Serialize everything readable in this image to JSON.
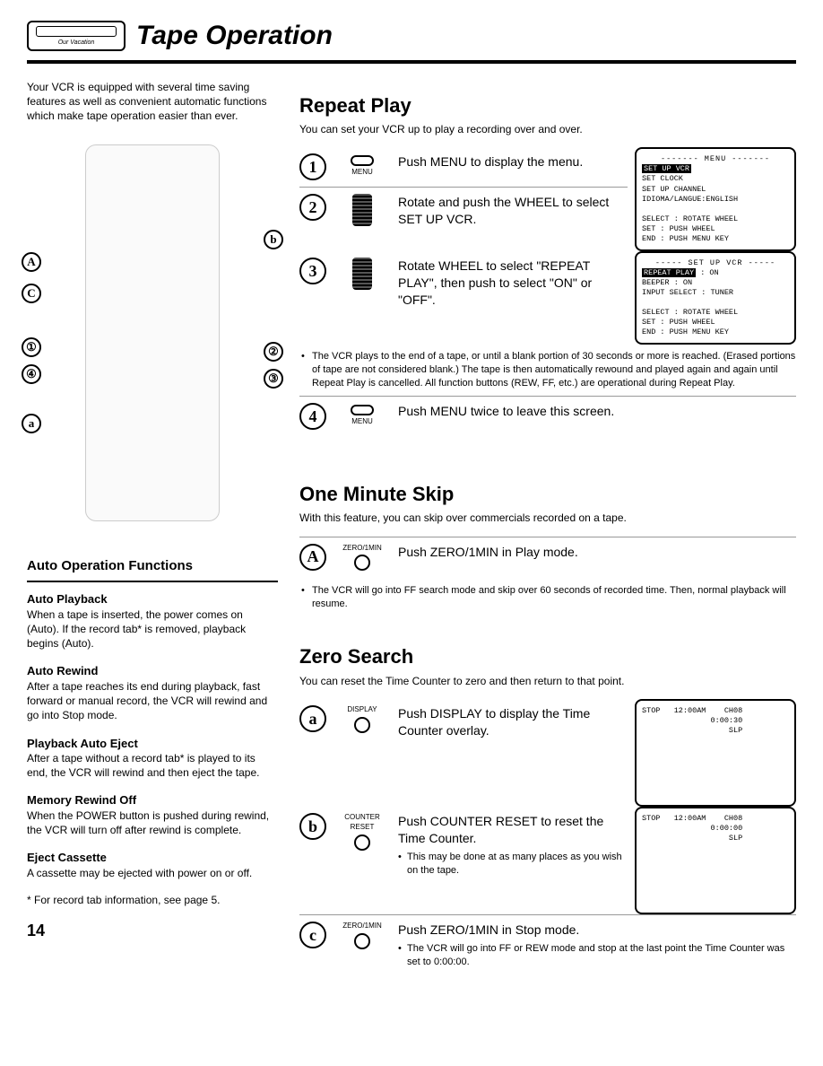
{
  "header": {
    "title": "Tape Operation",
    "tape_label": "Our Vacation"
  },
  "intro": "Your VCR is equipped with several time saving features as well as convenient automatic functions which make tape operation easier than ever.",
  "callouts_left": [
    "A",
    "C",
    "①",
    "④",
    "a"
  ],
  "callouts_right": [
    "b",
    "②",
    "③"
  ],
  "auto": {
    "heading": "Auto Operation Functions",
    "items": [
      {
        "t": "Auto Playback",
        "d": "When a tape is inserted, the power comes on (Auto). If the record tab* is removed, playback begins (Auto)."
      },
      {
        "t": "Auto Rewind",
        "d": "After a tape reaches its end during playback, fast forward or manual record, the VCR will rewind and go into Stop mode."
      },
      {
        "t": "Playback Auto Eject",
        "d": "After a tape without a record tab* is played to its end, the VCR will rewind and then eject the tape."
      },
      {
        "t": "Memory Rewind Off",
        "d": "When the POWER button is pushed during rewind, the VCR will turn off after rewind is complete."
      },
      {
        "t": "Eject Cassette",
        "d": "A cassette may be ejected with power on or off."
      }
    ],
    "footnote": "* For record tab information, see page 5."
  },
  "pagenum": "14",
  "repeat": {
    "title": "Repeat Play",
    "sub": "You can set your VCR up to play a recording over and over.",
    "steps": [
      {
        "n": "1",
        "icon": "MENU",
        "text": "Push MENU to display the menu."
      },
      {
        "n": "2",
        "icon": "wheel",
        "text": "Rotate and push the WHEEL to select SET UP VCR."
      },
      {
        "n": "3",
        "icon": "wheel",
        "text": "Rotate WHEEL to select \"REPEAT PLAY\", then push to select \"ON\" or \"OFF\"."
      }
    ],
    "note": "The VCR plays to the end of a tape, or until a blank portion of 30 seconds or more is reached. (Erased portions of tape are not considered blank.) The tape is then automatically rewound and played again and again until Repeat Play is cancelled. All function buttons (REW, FF, etc.) are operational during Repeat Play.",
    "step4": {
      "n": "4",
      "icon": "MENU",
      "text": "Push MENU twice to leave this screen."
    },
    "screen1": {
      "title": "------- MENU -------",
      "lines": [
        "SET UP VCR",
        "SET CLOCK",
        "SET UP CHANNEL",
        "IDIOMA/LANGUE:ENGLISH",
        "",
        "SELECT : ROTATE WHEEL",
        "SET    : PUSH WHEEL",
        "END    : PUSH MENU KEY"
      ],
      "inv_index": 0
    },
    "screen2": {
      "title": "----- SET UP VCR -----",
      "lines": [
        "REPEAT PLAY  : ON",
        "BEEPER       : ON",
        "INPUT SELECT : TUNER",
        "",
        "SELECT : ROTATE WHEEL",
        "SET    : PUSH WHEEL",
        "END    : PUSH MENU KEY"
      ],
      "inv_index": 0
    }
  },
  "skip": {
    "title": "One Minute Skip",
    "sub": "With this feature, you can skip over commercials recorded on a tape.",
    "step": {
      "n": "A",
      "icon": "ZERO/1MIN",
      "text": "Push ZERO/1MIN in Play mode."
    },
    "note": "The VCR will go into FF search mode and skip over 60 seconds of recorded time. Then, normal playback will resume."
  },
  "zero": {
    "title": "Zero Search",
    "sub": "You can reset the Time Counter to zero and then return to that point.",
    "steps": [
      {
        "n": "a",
        "icon": "DISPLAY",
        "text": "Push DISPLAY to display the Time Counter overlay."
      },
      {
        "n": "b",
        "icon": "COUNTER RESET",
        "text": "Push COUNTER RESET to reset the Time Counter.",
        "sub": "This may be done at as many places as you wish on the tape."
      },
      {
        "n": "c",
        "icon": "ZERO/1MIN",
        "text": "Push ZERO/1MIN in Stop mode.",
        "sub": "The VCR will go into FF or REW mode and stop at the last point the Time Counter was set to 0:00:00."
      }
    ],
    "screen1": [
      "STOP   12:00AM    CH08",
      "               0:00:30",
      "                   SLP"
    ],
    "screen2": [
      "STOP   12:00AM    CH08",
      "               0:00:00",
      "                   SLP"
    ]
  }
}
